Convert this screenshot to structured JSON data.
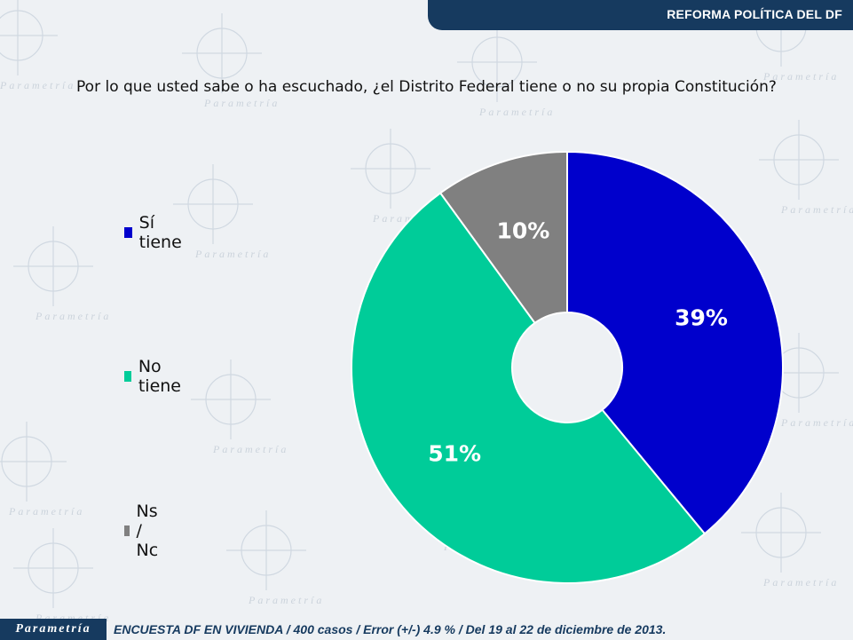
{
  "header": {
    "title": "REFORMA POLÍTICA DEL DF"
  },
  "question": "Por lo que usted sabe o ha escuchado, ¿el Distrito Federal tiene o no su propia Constitución?",
  "chart_data": {
    "type": "pie",
    "donut": true,
    "categories": [
      "Sí tiene",
      "No tiene",
      "Ns / Nc"
    ],
    "values": [
      39,
      51,
      10
    ],
    "value_labels": [
      "39%",
      "51%",
      "10%"
    ],
    "colors": [
      "#0000cc",
      "#00cc99",
      "#808080"
    ],
    "label_colors": [
      "#ffffff",
      "#ffffff",
      "#ffffff"
    ],
    "legend_position": "left"
  },
  "footer": {
    "logo_text": "Parametría",
    "note": "ENCUESTA DF EN VIVIENDA / 400 casos / Error (+/-) 4.9 % / Del 19 al 22 de diciembre de 2013."
  },
  "watermark": {
    "text": "Parametría"
  }
}
